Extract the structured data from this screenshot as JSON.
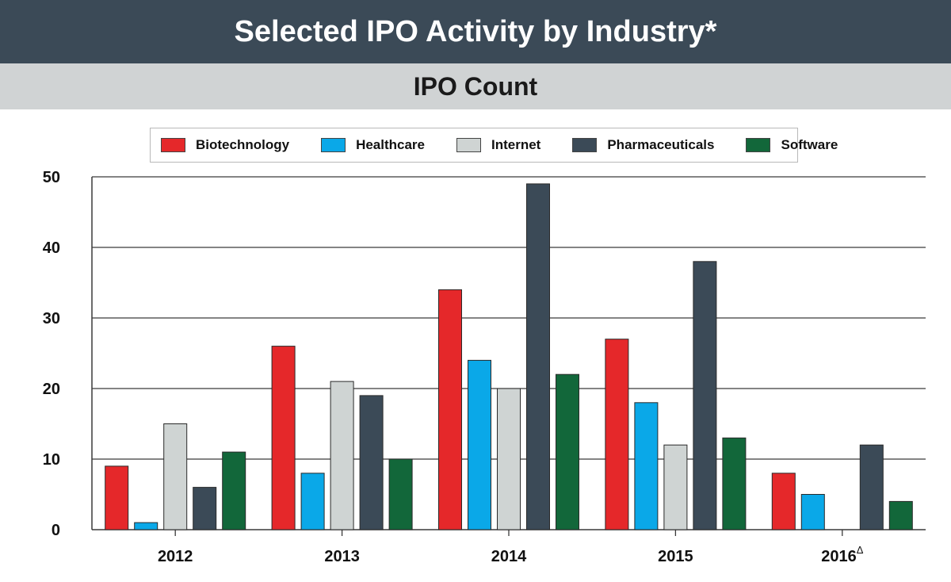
{
  "header": {
    "title": "Selected IPO Activity by Industry*",
    "subtitle": "IPO Count"
  },
  "chart_data": {
    "type": "bar",
    "title": "Selected IPO Activity by Industry*",
    "subtitle": "IPO Count",
    "xlabel": "",
    "ylabel": "",
    "ylim": [
      0,
      50
    ],
    "yticks": [
      0,
      10,
      20,
      30,
      40,
      50
    ],
    "grid": true,
    "legend_position": "top",
    "categories": [
      "2012",
      "2013",
      "2014",
      "2015",
      "2016"
    ],
    "category_superscripts": [
      "",
      "",
      "",
      "",
      "Δ"
    ],
    "series": [
      {
        "name": "Biotechnology",
        "color": "#e5282a",
        "values": [
          9,
          26,
          34,
          27,
          8
        ]
      },
      {
        "name": "Healthcare",
        "color": "#0aa8e8",
        "values": [
          1,
          8,
          24,
          18,
          5
        ]
      },
      {
        "name": "Internet",
        "color": "#cfd4d3",
        "values": [
          15,
          21,
          20,
          12,
          null
        ]
      },
      {
        "name": "Pharmaceuticals",
        "color": "#3b4a57",
        "values": [
          6,
          19,
          49,
          38,
          12
        ]
      },
      {
        "name": "Software",
        "color": "#12673a",
        "values": [
          11,
          10,
          22,
          13,
          4
        ]
      }
    ]
  }
}
